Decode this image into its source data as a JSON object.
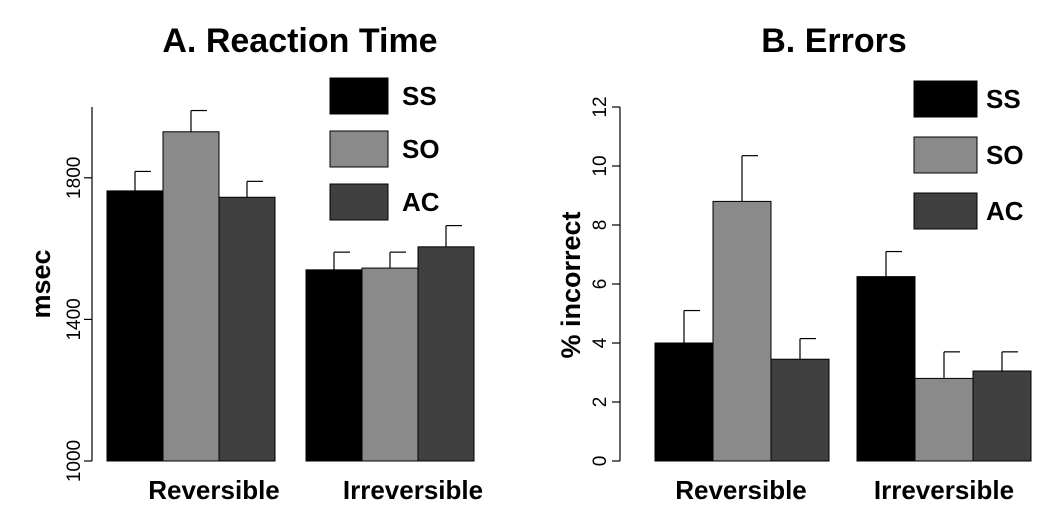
{
  "chart_data": [
    {
      "type": "bar",
      "title": "A.  Reaction Time",
      "ylabel": "msec",
      "xlabel": "",
      "ylim": [
        1000,
        2000
      ],
      "yticks": [
        1000,
        1400,
        1800
      ],
      "categories": [
        "Reversible",
        "Irreversible"
      ],
      "series": [
        {
          "name": "SS",
          "color": "#000000",
          "values": [
            1763,
            1540
          ],
          "errors": [
            55,
            50
          ]
        },
        {
          "name": "SO",
          "color": "#8a8a8a",
          "values": [
            1930,
            1545
          ],
          "errors": [
            60,
            45
          ]
        },
        {
          "name": "AC",
          "color": "#404040",
          "values": [
            1745,
            1605
          ],
          "errors": [
            45,
            60
          ]
        }
      ],
      "legend_position": "top-right",
      "grid": false
    },
    {
      "type": "bar",
      "title": "B.  Errors",
      "ylabel": "% incorrect",
      "xlabel": "",
      "ylim": [
        0,
        12
      ],
      "yticks": [
        0,
        2,
        4,
        6,
        8,
        10,
        12
      ],
      "categories": [
        "Reversible",
        "Irreversible"
      ],
      "series": [
        {
          "name": "SS",
          "color": "#000000",
          "values": [
            4.0,
            6.25
          ],
          "errors": [
            1.1,
            0.85
          ]
        },
        {
          "name": "SO",
          "color": "#8a8a8a",
          "values": [
            8.8,
            2.8
          ],
          "errors": [
            1.55,
            0.9
          ]
        },
        {
          "name": "AC",
          "color": "#404040",
          "values": [
            3.45,
            3.05
          ],
          "errors": [
            0.7,
            0.65
          ]
        }
      ],
      "legend_position": "top-right",
      "grid": false
    }
  ]
}
